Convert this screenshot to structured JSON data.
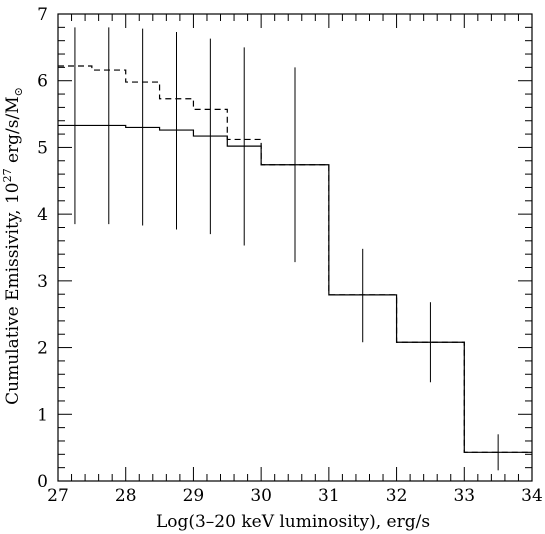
{
  "chart_data": {
    "type": "line",
    "xlabel": "Log(3–20 keV luminosity), erg/s",
    "ylabel_main": "Cumulative Emissivity, 10",
    "ylabel_exp": "27",
    "ylabel_unit": " erg/s/M",
    "ylabel_sun": "⊙",
    "xlim": [
      27,
      34
    ],
    "ylim": [
      0,
      7
    ],
    "x_ticks": [
      27,
      28,
      29,
      30,
      31,
      32,
      33,
      34
    ],
    "y_ticks": [
      0,
      1,
      2,
      3,
      4,
      5,
      6,
      7
    ],
    "series": [
      {
        "style": "solid",
        "steps": [
          {
            "x0": 27.0,
            "x1": 28.0,
            "y": 5.33
          },
          {
            "x0": 28.0,
            "x1": 28.5,
            "y": 5.3
          },
          {
            "x0": 28.5,
            "x1": 29.0,
            "y": 5.26
          },
          {
            "x0": 29.0,
            "x1": 29.5,
            "y": 5.17
          },
          {
            "x0": 29.5,
            "x1": 30.0,
            "y": 5.02
          },
          {
            "x0": 30.0,
            "x1": 31.0,
            "y": 4.74
          },
          {
            "x0": 31.0,
            "x1": 32.0,
            "y": 2.79
          },
          {
            "x0": 32.0,
            "x1": 33.0,
            "y": 2.08
          },
          {
            "x0": 33.0,
            "x1": 34.0,
            "y": 0.43
          }
        ]
      },
      {
        "style": "dashed",
        "steps": [
          {
            "x0": 27.0,
            "x1": 27.5,
            "y": 6.22
          },
          {
            "x0": 27.5,
            "x1": 28.0,
            "y": 6.16
          },
          {
            "x0": 28.0,
            "x1": 28.5,
            "y": 5.98
          },
          {
            "x0": 28.5,
            "x1": 29.0,
            "y": 5.73
          },
          {
            "x0": 29.0,
            "x1": 29.5,
            "y": 5.57
          },
          {
            "x0": 29.5,
            "x1": 30.0,
            "y": 5.12
          },
          {
            "x0": 30.0,
            "x1": 31.0,
            "y": 4.74
          },
          {
            "x0": 31.0,
            "x1": 32.0,
            "y": 2.79
          },
          {
            "x0": 32.0,
            "x1": 33.0,
            "y": 2.08
          },
          {
            "x0": 33.0,
            "x1": 34.0,
            "y": 0.43
          }
        ]
      }
    ],
    "error_bars": [
      {
        "x": 27.25,
        "low": 3.85,
        "high": 6.8
      },
      {
        "x": 27.75,
        "low": 3.85,
        "high": 6.8
      },
      {
        "x": 28.25,
        "low": 3.83,
        "high": 6.78
      },
      {
        "x": 28.75,
        "low": 3.77,
        "high": 6.73
      },
      {
        "x": 29.25,
        "low": 3.7,
        "high": 6.63
      },
      {
        "x": 29.75,
        "low": 3.53,
        "high": 6.5
      },
      {
        "x": 30.5,
        "low": 3.28,
        "high": 6.2
      },
      {
        "x": 31.5,
        "low": 2.08,
        "high": 3.48
      },
      {
        "x": 32.5,
        "low": 1.48,
        "high": 2.68
      },
      {
        "x": 33.5,
        "low": 0.16,
        "high": 0.7
      }
    ]
  }
}
